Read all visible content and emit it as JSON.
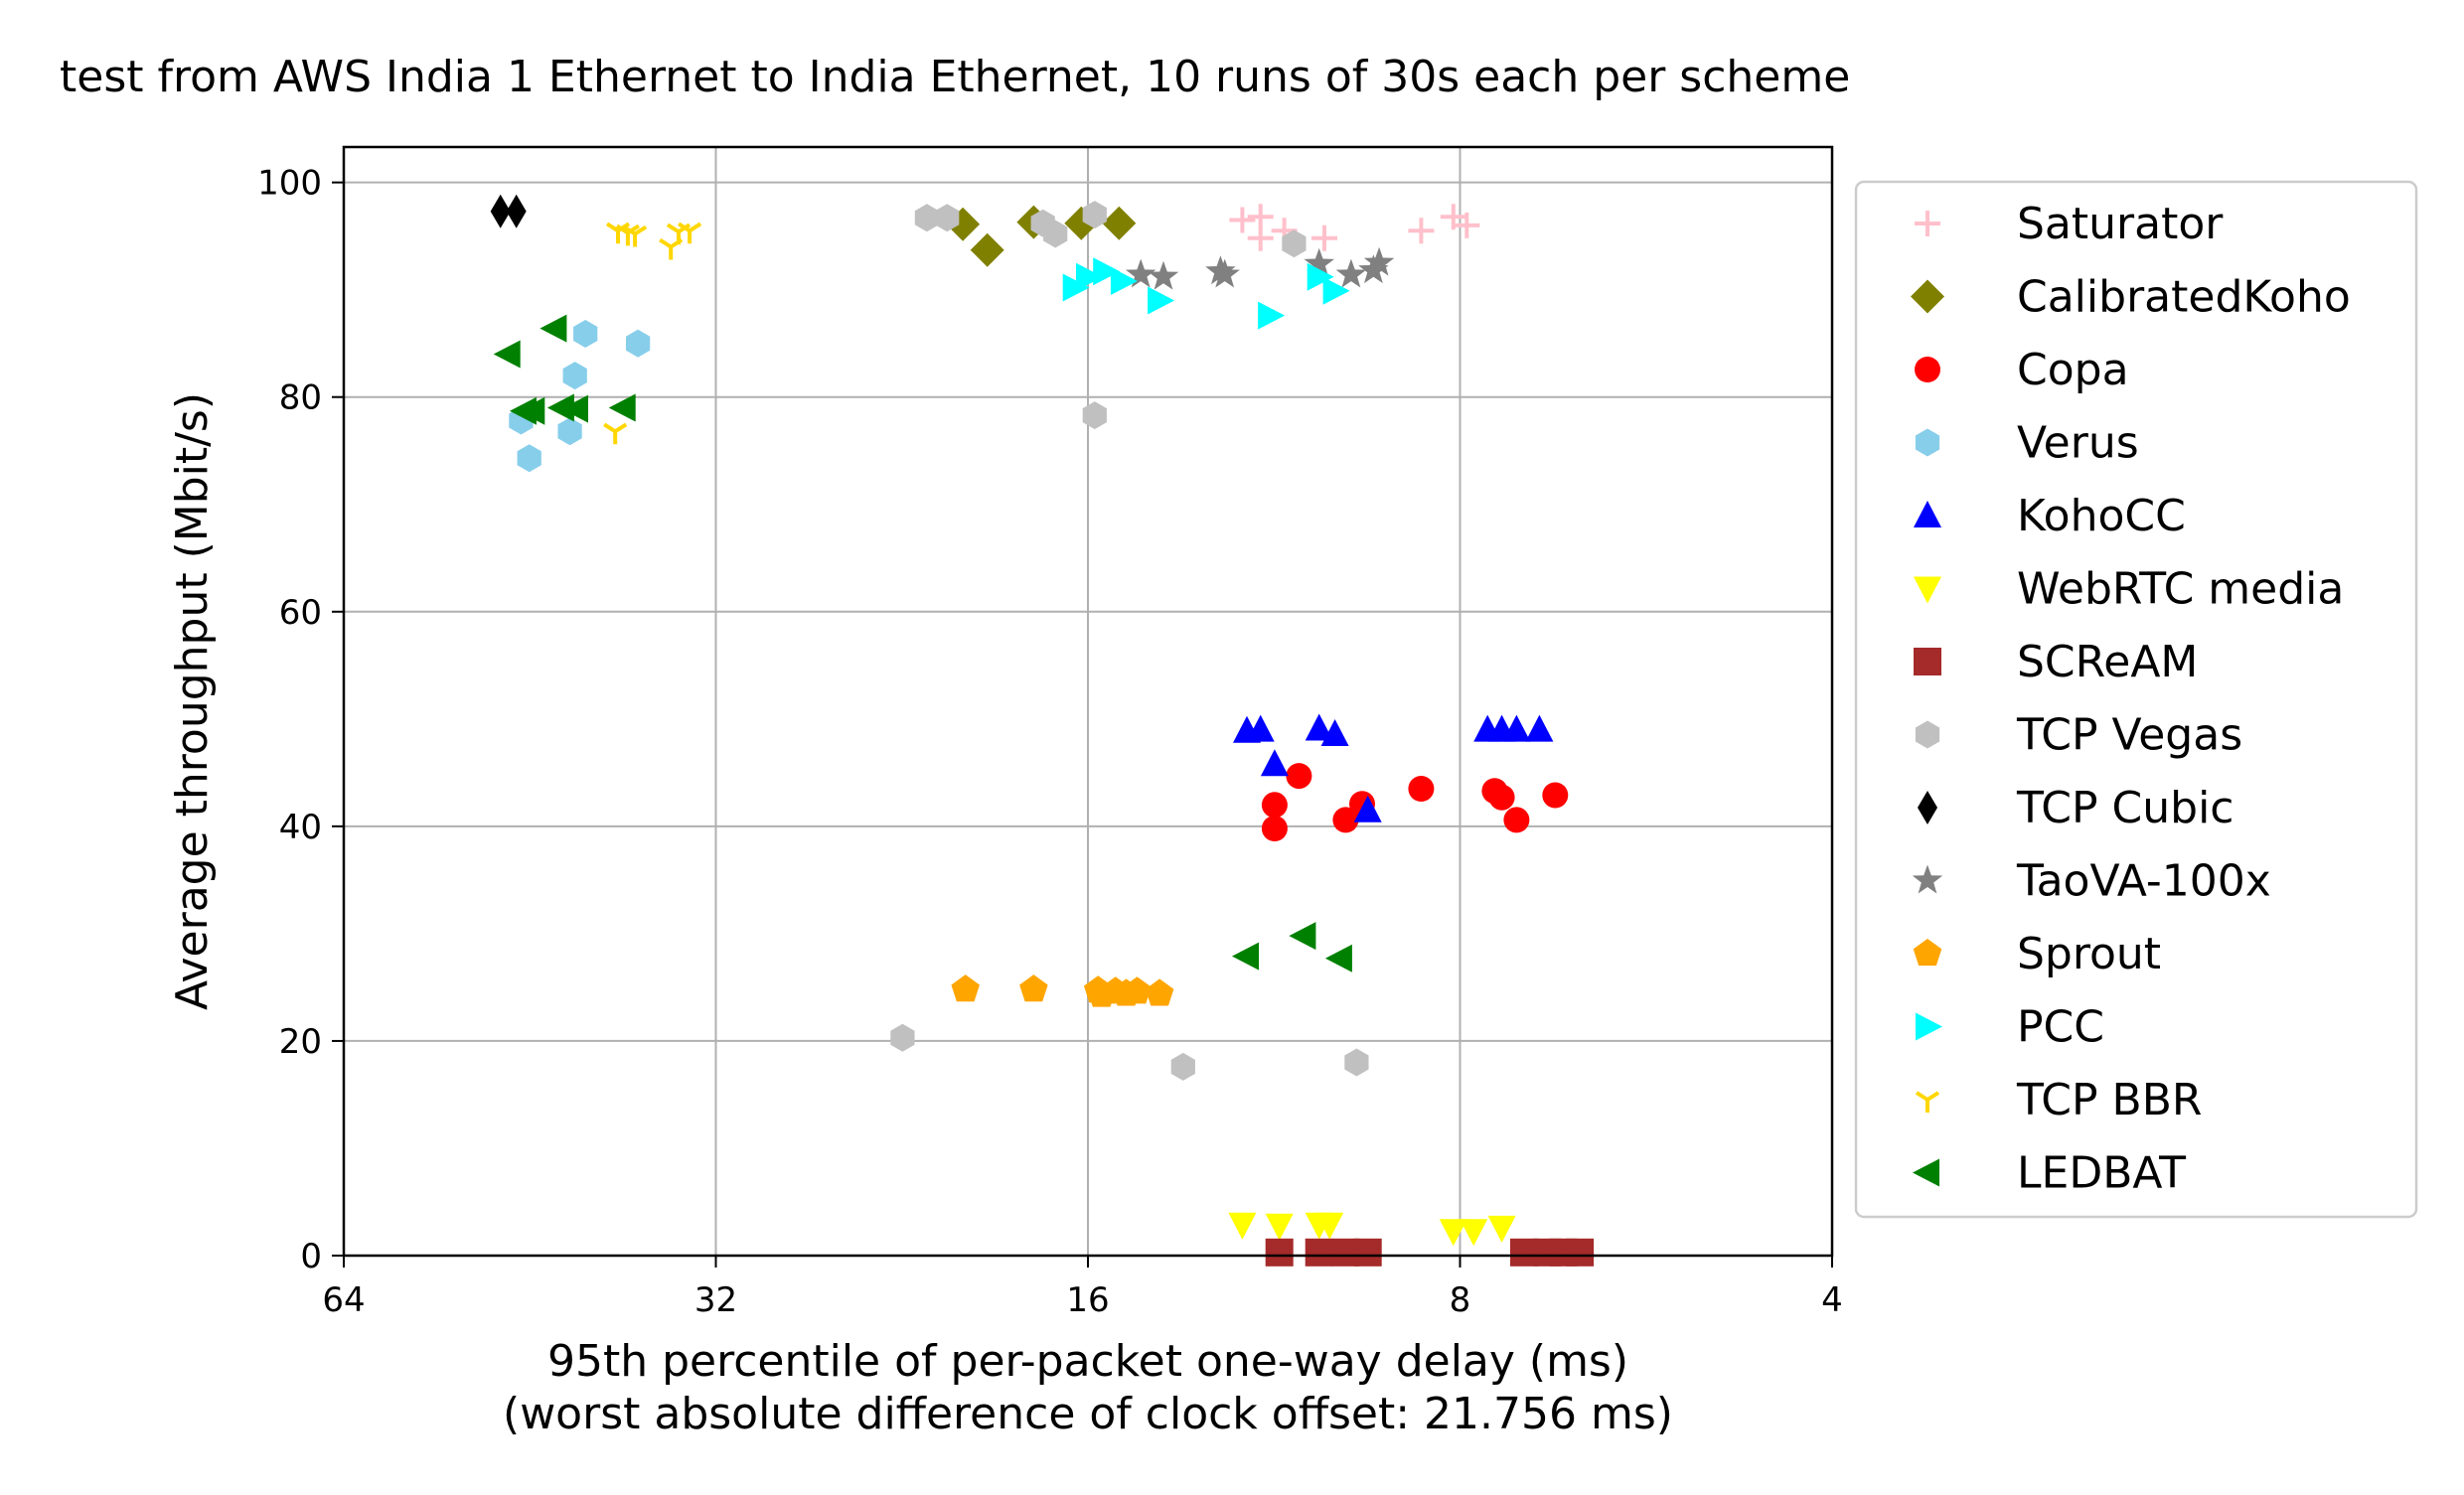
{
  "chart_data": {
    "type": "scatter",
    "title": "test from AWS India 1 Ethernet to India Ethernet, 10 runs of 30s each per scheme",
    "xlabel": "95th percentile of per-packet one-way delay (ms)",
    "xlabel2": "(worst absolute difference of clock offset: 21.756 ms)",
    "ylabel": "Average throughput (Mbit/s)",
    "x_scale": "log2",
    "x_inverted": true,
    "xlim": [
      64,
      4
    ],
    "ylim": [
      0,
      103.3
    ],
    "grid": true,
    "legend_position": "outside-right",
    "x_ticks": [
      64,
      32,
      16,
      8,
      4
    ],
    "x_tick_labels": [
      "64",
      "32",
      "16",
      "8",
      "4"
    ],
    "y_ticks": [
      0,
      20,
      40,
      60,
      80,
      100
    ],
    "y_tick_labels": [
      "0",
      "20",
      "40",
      "60",
      "80",
      "100"
    ],
    "series": [
      {
        "name": "Saturator",
        "marker": "plus",
        "color": "#ffc0cb",
        "points": [
          [
            12.0,
            96.5
          ],
          [
            11.6,
            96.8
          ],
          [
            11.6,
            94.8
          ],
          [
            11.1,
            95.5
          ],
          [
            10.3,
            94.8
          ],
          [
            8.6,
            95.5
          ],
          [
            8.1,
            96.8
          ],
          [
            7.9,
            96.0
          ]
        ]
      },
      {
        "name": "CalibratedKoho",
        "marker": "diamond",
        "color": "#808000",
        "points": [
          [
            20.2,
            96.1
          ],
          [
            19.3,
            93.7
          ],
          [
            17.7,
            96.3
          ],
          [
            16.2,
            96.2
          ],
          [
            15.1,
            96.2
          ]
        ]
      },
      {
        "name": "Copa",
        "marker": "circle",
        "color": "#ff0000",
        "points": [
          [
            11.3,
            39.8
          ],
          [
            11.3,
            42.0
          ],
          [
            10.8,
            44.7
          ],
          [
            9.9,
            40.6
          ],
          [
            9.6,
            42.1
          ],
          [
            8.6,
            43.5
          ],
          [
            7.5,
            43.3
          ],
          [
            7.4,
            42.7
          ],
          [
            7.2,
            40.6
          ],
          [
            6.7,
            42.9
          ]
        ]
      },
      {
        "name": "Verus",
        "marker": "hexagon",
        "color": "#87ceeb",
        "points": [
          [
            46.0,
            77.8
          ],
          [
            45.3,
            74.3
          ],
          [
            41.6,
            82.0
          ],
          [
            42.0,
            76.8
          ],
          [
            40.8,
            85.9
          ],
          [
            37.0,
            85.0
          ]
        ]
      },
      {
        "name": "KohoCC",
        "marker": "triangle-up",
        "color": "#0000ff",
        "points": [
          [
            11.9,
            48.9
          ],
          [
            11.6,
            49.0
          ],
          [
            11.3,
            45.8
          ],
          [
            10.4,
            49.1
          ],
          [
            10.1,
            48.6
          ],
          [
            9.5,
            41.5
          ],
          [
            7.6,
            49.0
          ],
          [
            7.4,
            49.0
          ],
          [
            7.2,
            49.0
          ],
          [
            6.9,
            49.0
          ]
        ]
      },
      {
        "name": "WebRTC media",
        "marker": "triangle-down",
        "color": "#ffff00",
        "points": [
          [
            12.0,
            2.9
          ],
          [
            11.2,
            2.8
          ],
          [
            10.4,
            2.9
          ],
          [
            10.2,
            2.9
          ],
          [
            8.1,
            2.3
          ],
          [
            7.8,
            2.3
          ],
          [
            7.4,
            2.6
          ]
        ]
      },
      {
        "name": "SCReAM",
        "marker": "square",
        "color": "#a52a2a",
        "points": [
          [
            11.2,
            0.3
          ],
          [
            10.4,
            0.3
          ],
          [
            9.9,
            0.3
          ],
          [
            9.5,
            0.3
          ],
          [
            7.1,
            0.3
          ],
          [
            6.8,
            0.3
          ],
          [
            6.6,
            0.3
          ],
          [
            6.4,
            0.3
          ]
        ]
      },
      {
        "name": "TCP Vegas",
        "marker": "hexagon",
        "color": "#c0c0c0",
        "points": [
          [
            21.6,
            96.7
          ],
          [
            20.8,
            96.7
          ],
          [
            17.4,
            96.2
          ],
          [
            17.0,
            95.2
          ],
          [
            15.8,
            97.0
          ],
          [
            15.8,
            78.3
          ],
          [
            10.9,
            94.3
          ],
          [
            22.6,
            20.3
          ],
          [
            13.4,
            17.6
          ],
          [
            9.7,
            18.0
          ]
        ]
      },
      {
        "name": "TCP Cubic",
        "marker": "thin-diamond",
        "color": "#000000",
        "points": [
          [
            47.8,
            97.3
          ],
          [
            46.4,
            97.3
          ]
        ]
      },
      {
        "name": "TaoVA-100x",
        "marker": "star",
        "color": "#808080",
        "points": [
          [
            14.5,
            91.4
          ],
          [
            13.9,
            91.2
          ],
          [
            12.5,
            91.7
          ],
          [
            12.4,
            91.4
          ],
          [
            10.4,
            92.4
          ],
          [
            9.8,
            91.4
          ],
          [
            9.4,
            91.8
          ],
          [
            9.3,
            92.5
          ]
        ]
      },
      {
        "name": "Sprout",
        "marker": "pentagon",
        "color": "#ffa500",
        "points": [
          [
            20.1,
            24.8
          ],
          [
            17.7,
            24.8
          ],
          [
            15.7,
            24.7
          ],
          [
            15.6,
            24.3
          ],
          [
            15.2,
            24.6
          ],
          [
            14.9,
            24.4
          ],
          [
            14.6,
            24.6
          ],
          [
            14.0,
            24.4
          ]
        ]
      },
      {
        "name": "PCC",
        "marker": "triangle-right",
        "color": "#00ffff",
        "points": [
          [
            16.4,
            90.2
          ],
          [
            16.0,
            91.2
          ],
          [
            15.5,
            91.7
          ],
          [
            15.0,
            90.8
          ],
          [
            14.0,
            89.0
          ],
          [
            11.4,
            87.6
          ],
          [
            10.4,
            91.2
          ],
          [
            10.1,
            89.9
          ]
        ]
      },
      {
        "name": "TCP BBR",
        "marker": "tri-down",
        "color": "#ffd700",
        "points": [
          [
            38.4,
            95.5
          ],
          [
            37.7,
            95.3
          ],
          [
            37.2,
            95.2
          ],
          [
            34.8,
            94.0
          ],
          [
            34.3,
            95.4
          ],
          [
            33.6,
            95.5
          ],
          [
            38.6,
            76.8
          ]
        ]
      },
      {
        "name": "LEDBAT",
        "marker": "triangle-left",
        "color": "#008000",
        "points": [
          [
            47.1,
            84.0
          ],
          [
            43.2,
            86.4
          ],
          [
            45.7,
            78.7
          ],
          [
            45.0,
            78.7
          ],
          [
            42.6,
            79.0
          ],
          [
            41.5,
            78.9
          ],
          [
            38.0,
            79.0
          ],
          [
            11.9,
            27.9
          ],
          [
            10.7,
            29.8
          ],
          [
            10.0,
            27.7
          ]
        ]
      }
    ]
  }
}
